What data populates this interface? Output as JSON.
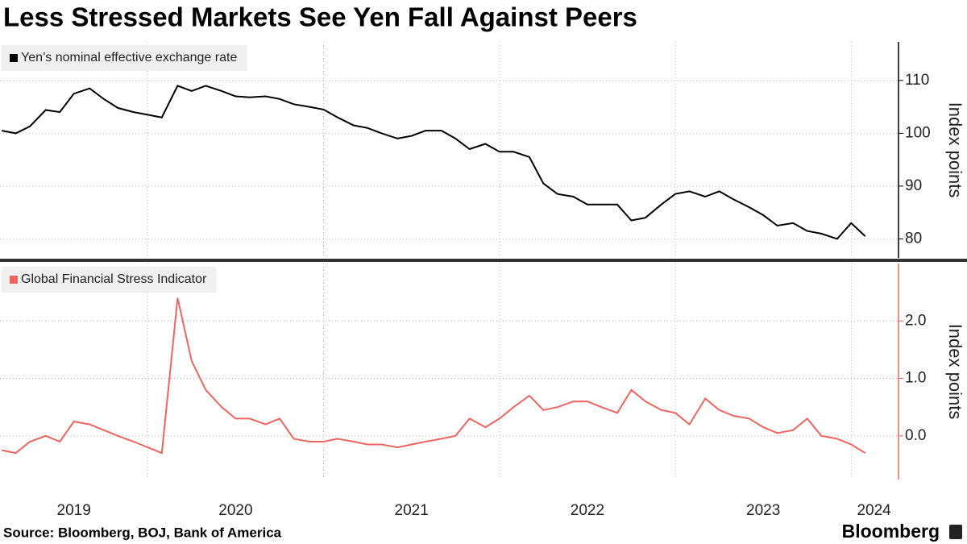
{
  "title": "Less Stressed Markets See Yen Fall Against Peers",
  "source": "Source: Bloomberg, BOJ, Bank of America",
  "brand": "Bloomberg",
  "chart_data": [
    {
      "type": "line",
      "ylabel": "Index points",
      "x": [
        2019.17,
        2019.25,
        2019.33,
        2019.42,
        2019.5,
        2019.58,
        2019.67,
        2019.75,
        2019.83,
        2019.92,
        2020.0,
        2020.08,
        2020.17,
        2020.25,
        2020.33,
        2020.42,
        2020.5,
        2020.58,
        2020.67,
        2020.75,
        2020.83,
        2020.92,
        2021.0,
        2021.08,
        2021.17,
        2021.25,
        2021.33,
        2021.42,
        2021.5,
        2021.58,
        2021.67,
        2021.75,
        2021.83,
        2021.92,
        2022.0,
        2022.08,
        2022.17,
        2022.25,
        2022.33,
        2022.42,
        2022.5,
        2022.58,
        2022.67,
        2022.75,
        2022.83,
        2022.92,
        2023.0,
        2023.08,
        2023.17,
        2023.25,
        2023.33,
        2023.42,
        2023.5,
        2023.58,
        2023.67,
        2023.75,
        2023.83,
        2023.92,
        2024.0,
        2024.08
      ],
      "series": [
        {
          "name": "Yen’s nominal effective exchange rate",
          "color": "#000000",
          "values": [
            100.5,
            100,
            101.3,
            104.4,
            104,
            107.5,
            108.5,
            106.5,
            104.8,
            104,
            103.5,
            103,
            109,
            108,
            109,
            108,
            107,
            106.8,
            107,
            106.5,
            105.5,
            105,
            104.5,
            103,
            101.5,
            101,
            100,
            99,
            99.5,
            100.5,
            100.5,
            99,
            97,
            98,
            96.5,
            96.5,
            95.5,
            90.5,
            88.5,
            88,
            86.5,
            86.5,
            86.5,
            83.5,
            84,
            86.5,
            88.5,
            89,
            88,
            89,
            87.5,
            86,
            84.5,
            82.5,
            83,
            81.5,
            81,
            80,
            83,
            80.5
          ]
        }
      ],
      "xlim": [
        2019.16,
        2024.26
      ],
      "xticks": [
        2020,
        2021,
        2022,
        2023,
        2024
      ],
      "ylim": [
        76.4,
        117.3
      ],
      "yticks": [
        80,
        90,
        100,
        110
      ],
      "grid": true,
      "axis_color": "#000000"
    },
    {
      "type": "line",
      "ylabel": "Index points",
      "x": [
        2019.17,
        2019.25,
        2019.33,
        2019.42,
        2019.5,
        2019.58,
        2019.67,
        2019.75,
        2019.83,
        2019.92,
        2020.0,
        2020.08,
        2020.17,
        2020.25,
        2020.33,
        2020.42,
        2020.5,
        2020.58,
        2020.67,
        2020.75,
        2020.83,
        2020.92,
        2021.0,
        2021.08,
        2021.17,
        2021.25,
        2021.33,
        2021.42,
        2021.5,
        2021.58,
        2021.67,
        2021.75,
        2021.83,
        2021.92,
        2022.0,
        2022.08,
        2022.17,
        2022.25,
        2022.33,
        2022.42,
        2022.5,
        2022.58,
        2022.67,
        2022.75,
        2022.83,
        2022.92,
        2023.0,
        2023.08,
        2023.17,
        2023.25,
        2023.33,
        2023.42,
        2023.5,
        2023.58,
        2023.67,
        2023.75,
        2023.83,
        2023.92,
        2024.0,
        2024.08
      ],
      "series": [
        {
          "name": "Global Financial Stress Indicator",
          "color": "#f0645f",
          "values": [
            -0.25,
            -0.3,
            -0.1,
            0.0,
            -0.1,
            0.25,
            0.2,
            0.1,
            0.0,
            -0.1,
            -0.2,
            -0.3,
            2.4,
            1.3,
            0.8,
            0.5,
            0.3,
            0.3,
            0.2,
            0.3,
            -0.05,
            -0.1,
            -0.1,
            -0.05,
            -0.1,
            -0.15,
            -0.15,
            -0.2,
            -0.15,
            -0.1,
            -0.05,
            0.0,
            0.3,
            0.15,
            0.3,
            0.5,
            0.7,
            0.45,
            0.5,
            0.6,
            0.6,
            0.5,
            0.4,
            0.8,
            0.6,
            0.45,
            0.4,
            0.2,
            0.65,
            0.45,
            0.35,
            0.3,
            0.15,
            0.05,
            0.1,
            0.3,
            0.0,
            -0.05,
            -0.15,
            -0.3
          ]
        }
      ],
      "xlim": [
        2019.16,
        2024.26
      ],
      "xticks": [
        2020,
        2021,
        2022,
        2023,
        2024
      ],
      "x_labels": [
        2019,
        2020,
        2021,
        2022,
        2023,
        2024
      ],
      "ylim": [
        -0.76,
        3.0
      ],
      "yticks": [
        {
          "value": 0,
          "label": "0.0"
        },
        {
          "value": 1,
          "label": "1.0"
        },
        {
          "value": 2,
          "label": "2.0"
        }
      ],
      "grid": true,
      "axis_color": "#f0645f"
    }
  ]
}
